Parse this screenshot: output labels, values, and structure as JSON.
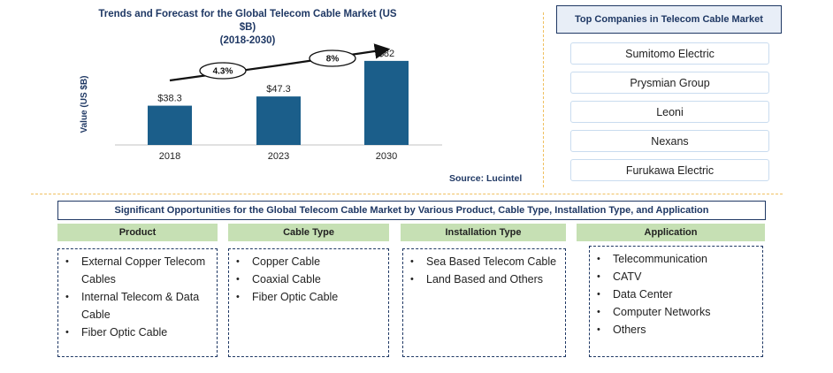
{
  "chart_data": {
    "type": "bar",
    "title": "Trends and Forecast for the Global Telecom Cable Market (US $B)",
    "subtitle": "(2018-2030)",
    "ylabel": "Value (US $B)",
    "xlabel": "",
    "categories": [
      "2018",
      "2023",
      "2030"
    ],
    "values": [
      38.3,
      47.3,
      82
    ],
    "value_labels": [
      "$38.3",
      "$47.3",
      "$82"
    ],
    "ylim": [
      0,
      100
    ],
    "bar_color": "#1b5e8a",
    "grid": false,
    "cagr_annotations": [
      {
        "label": "4.3%",
        "from": "2018",
        "to": "2023"
      },
      {
        "label": "8%",
        "from": "2023",
        "to": "2030"
      }
    ]
  },
  "source": "Source: Lucintel",
  "companies": {
    "title": "Top Companies in Telecom Cable Market",
    "items": [
      "Sumitomo Electric",
      "Prysmian Group",
      "Leoni",
      "Nexans",
      "Furukawa Electric"
    ]
  },
  "opportunities": {
    "title": "Significant Opportunities for the Global Telecom Cable Market by Various Product, Cable Type, Installation Type, and Application",
    "categories": [
      {
        "name": "Product",
        "items": [
          "External Copper Telecom Cables",
          "Internal Telecom & Data Cable",
          "Fiber Optic Cable"
        ]
      },
      {
        "name": "Cable Type",
        "items": [
          "Copper Cable",
          "Coaxial Cable",
          "Fiber Optic Cable"
        ]
      },
      {
        "name": "Installation Type",
        "items": [
          "Sea Based Telecom Cable",
          "Land Based and Others"
        ]
      },
      {
        "name": "Application",
        "items": [
          "Telecommunication",
          "CATV",
          "Data Center",
          "Computer Networks",
          "Others"
        ]
      }
    ]
  },
  "colors": {
    "accent": "#1f3864",
    "category_header": "#c6e0b4",
    "divider": "#f0c060"
  }
}
